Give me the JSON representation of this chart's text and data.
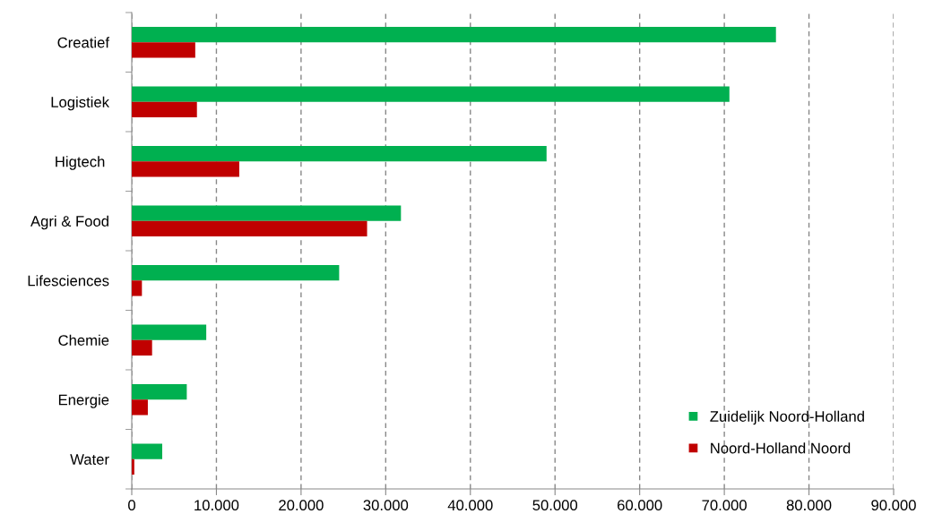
{
  "chart_data": {
    "type": "bar",
    "orientation": "horizontal",
    "categories": [
      "Creatief",
      "Logistiek",
      "Higtech ",
      "Agri & Food",
      "Lifesciences",
      "Chemie",
      "Energie",
      "Water"
    ],
    "series": [
      {
        "name": "Zuidelijk Noord-Holland",
        "color": "#00b050",
        "values": [
          76100,
          70600,
          49000,
          31800,
          24500,
          8800,
          6500,
          3600
        ]
      },
      {
        "name": "Noord-Holland Noord",
        "color": "#c00000",
        "values": [
          7500,
          7700,
          12700,
          27800,
          1200,
          2400,
          1900,
          300
        ]
      }
    ],
    "xlim": [
      0,
      90000
    ],
    "xticks": [
      0,
      {
        "value": 10000,
        "label": "10.000"
      },
      {
        "value": 20000,
        "label": "20.000"
      },
      {
        "value": 30000,
        "label": "30.000"
      },
      {
        "value": 40000,
        "label": "40.000"
      },
      {
        "value": 50000,
        "label": "50.000"
      },
      {
        "value": 60000,
        "label": "60.000"
      },
      {
        "value": 70000,
        "label": "70.000"
      },
      {
        "value": 80000,
        "label": "80.000"
      },
      {
        "value": 90000,
        "label": "90.000"
      }
    ],
    "grid": "x",
    "legend": "bottom right"
  }
}
